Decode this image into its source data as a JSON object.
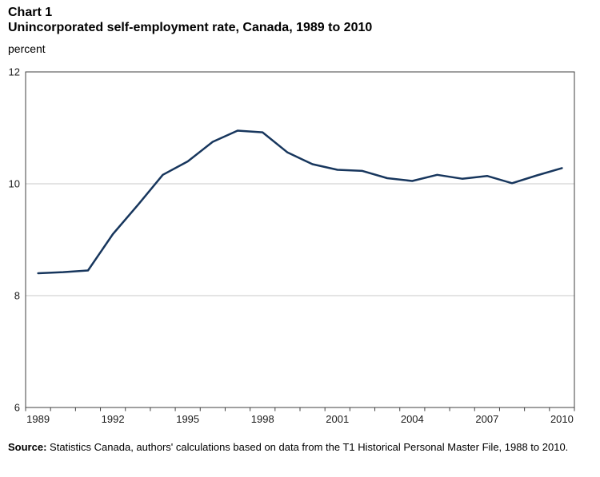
{
  "header": {
    "chart_label": "Chart 1",
    "title": "Unincorporated self-employment rate, Canada, 1989 to 2010",
    "unit_label": "percent"
  },
  "chart_data": {
    "type": "line",
    "title": "Unincorporated self-employment rate, Canada, 1989 to 2010",
    "xlabel": "",
    "ylabel": "percent",
    "x": [
      1989,
      1990,
      1991,
      1992,
      1993,
      1994,
      1995,
      1996,
      1997,
      1998,
      1999,
      2000,
      2001,
      2002,
      2003,
      2004,
      2005,
      2006,
      2007,
      2008,
      2009,
      2010
    ],
    "series": [
      {
        "name": "Unincorporated self-employment rate",
        "values": [
          8.4,
          8.42,
          8.45,
          9.1,
          9.62,
          10.16,
          10.4,
          10.75,
          10.95,
          10.92,
          10.56,
          10.35,
          10.25,
          10.23,
          10.1,
          10.05,
          10.16,
          10.09,
          10.14,
          10.01,
          10.15,
          10.28
        ]
      }
    ],
    "ylim": [
      6,
      12
    ],
    "yticks": [
      6,
      8,
      10,
      12
    ],
    "xticklabels": [
      1989,
      1992,
      1995,
      1998,
      2001,
      2004,
      2007,
      2010
    ],
    "grid": true,
    "legend_position": "none",
    "line_color": "#17365d",
    "gridline_color": "#c8c8c8",
    "axis_color": "#404040",
    "tick_label_color": "#1a1a1a"
  },
  "source_note": {
    "label": "Source:",
    "text": "Statistics Canada, authors' calculations based on data from the T1 Historical Personal Master File, 1988 to 2010."
  }
}
